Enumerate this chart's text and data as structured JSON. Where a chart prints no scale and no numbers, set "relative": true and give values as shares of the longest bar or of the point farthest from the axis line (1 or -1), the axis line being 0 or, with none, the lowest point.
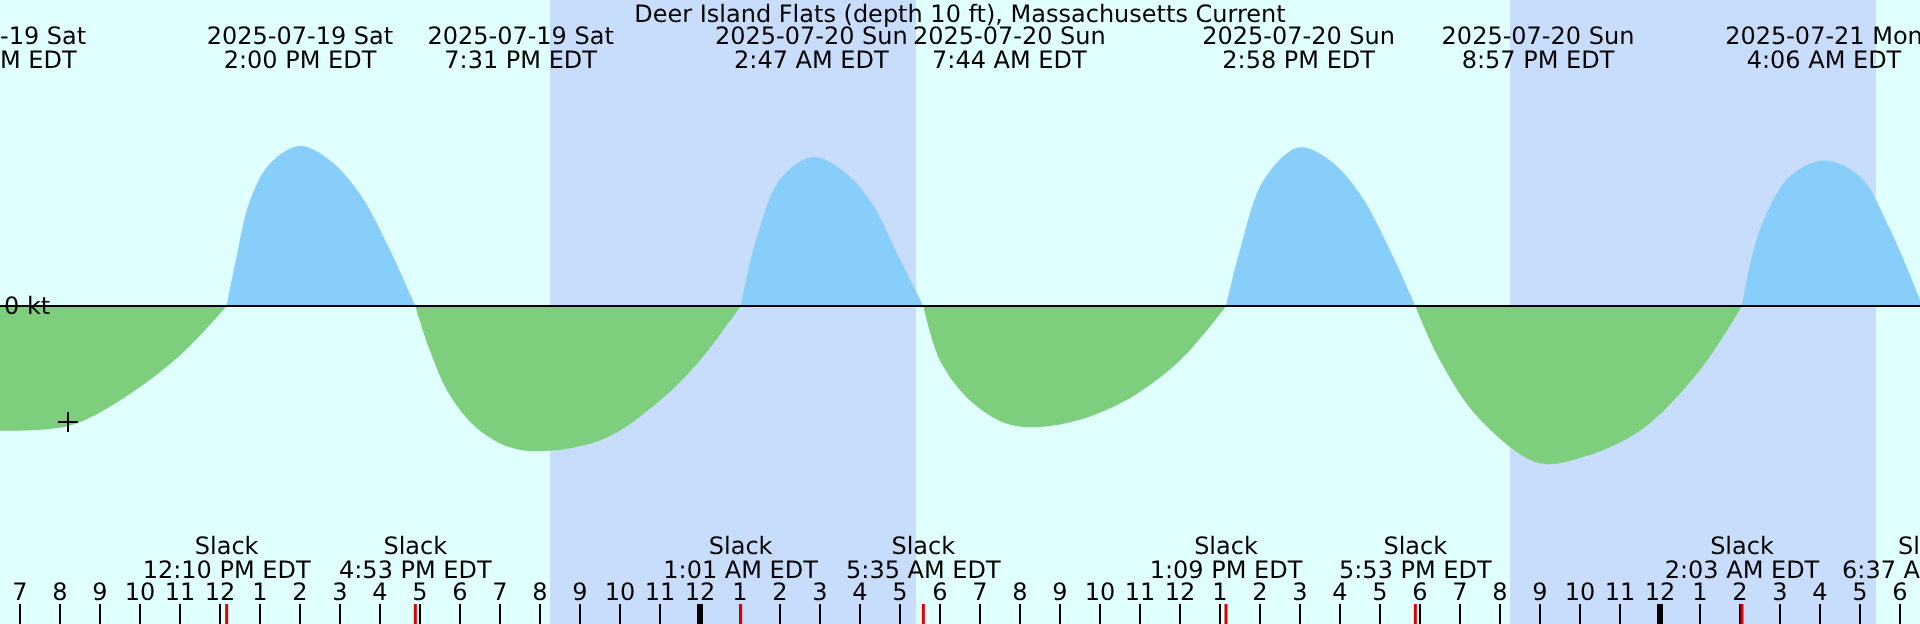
{
  "chart_data": {
    "type": "area",
    "title": "Deer Island Flats (depth 10 ft), Massachusetts Current",
    "relative": true,
    "xlim": [
      "2025-07-19T06:30",
      "2025-07-21T06:30"
    ],
    "xticks": [
      {
        "value": "2025-07-19T07:00",
        "label": "7"
      },
      {
        "value": "2025-07-19T08:00",
        "label": "8"
      },
      {
        "value": "2025-07-19T09:00",
        "label": "9"
      },
      {
        "value": "2025-07-19T10:00",
        "label": "10"
      },
      {
        "value": "2025-07-19T11:00",
        "label": "11"
      },
      {
        "value": "2025-07-19T12:00",
        "label": "12"
      },
      {
        "value": "2025-07-19T13:00",
        "label": "1"
      },
      {
        "value": "2025-07-19T14:00",
        "label": "2"
      },
      {
        "value": "2025-07-19T15:00",
        "label": "3"
      },
      {
        "value": "2025-07-19T16:00",
        "label": "4"
      },
      {
        "value": "2025-07-19T17:00",
        "label": "5"
      },
      {
        "value": "2025-07-19T18:00",
        "label": "6"
      },
      {
        "value": "2025-07-19T19:00",
        "label": "7"
      },
      {
        "value": "2025-07-19T20:00",
        "label": "8"
      },
      {
        "value": "2025-07-19T21:00",
        "label": "9"
      },
      {
        "value": "2025-07-19T22:00",
        "label": "10"
      },
      {
        "value": "2025-07-19T23:00",
        "label": "11"
      },
      {
        "value": "2025-07-20T00:00",
        "label": "12"
      },
      {
        "value": "2025-07-20T01:00",
        "label": "1"
      },
      {
        "value": "2025-07-20T02:00",
        "label": "2"
      },
      {
        "value": "2025-07-20T03:00",
        "label": "3"
      },
      {
        "value": "2025-07-20T04:00",
        "label": "4"
      },
      {
        "value": "2025-07-20T05:00",
        "label": "5"
      },
      {
        "value": "2025-07-20T06:00",
        "label": "6"
      },
      {
        "value": "2025-07-20T07:00",
        "label": "7"
      },
      {
        "value": "2025-07-20T08:00",
        "label": "8"
      },
      {
        "value": "2025-07-20T09:00",
        "label": "9"
      },
      {
        "value": "2025-07-20T10:00",
        "label": "10"
      },
      {
        "value": "2025-07-20T11:00",
        "label": "11"
      },
      {
        "value": "2025-07-20T12:00",
        "label": "12"
      },
      {
        "value": "2025-07-20T13:00",
        "label": "1"
      },
      {
        "value": "2025-07-20T14:00",
        "label": "2"
      },
      {
        "value": "2025-07-20T15:00",
        "label": "3"
      },
      {
        "value": "2025-07-20T16:00",
        "label": "4"
      },
      {
        "value": "2025-07-20T17:00",
        "label": "5"
      },
      {
        "value": "2025-07-20T18:00",
        "label": "6"
      },
      {
        "value": "2025-07-20T19:00",
        "label": "7"
      },
      {
        "value": "2025-07-20T20:00",
        "label": "8"
      },
      {
        "value": "2025-07-20T21:00",
        "label": "9"
      },
      {
        "value": "2025-07-20T22:00",
        "label": "10"
      },
      {
        "value": "2025-07-20T23:00",
        "label": "11"
      },
      {
        "value": "2025-07-21T00:00",
        "label": "12"
      },
      {
        "value": "2025-07-21T01:00",
        "label": "1"
      },
      {
        "value": "2025-07-21T02:00",
        "label": "2"
      },
      {
        "value": "2025-07-21T03:00",
        "label": "3"
      },
      {
        "value": "2025-07-21T04:00",
        "label": "4"
      },
      {
        "value": "2025-07-21T05:00",
        "label": "5"
      },
      {
        "value": "2025-07-21T06:00",
        "label": "6"
      }
    ],
    "bands": [
      {
        "axis": "x",
        "from": "2025-07-19T20:15",
        "to": "2025-07-20T05:24",
        "color": "#c8dcfc"
      },
      {
        "axis": "x",
        "from": "2025-07-20T20:15",
        "to": "2025-07-21T05:24",
        "color": "#c8dcfc"
      }
    ],
    "series": [
      {
        "color": "#87cefa",
        "x": [
          "2025-07-19T12:10",
          "2025-07-19T12:24",
          "2025-07-19T12:45",
          "2025-07-19T13:15",
          "2025-07-19T14:00",
          "2025-07-19T14:45",
          "2025-07-19T15:30",
          "2025-07-19T16:15",
          "2025-07-19T16:53",
          "2025-07-19T19:31",
          "2025-07-20T01:01",
          "2025-07-20T01:24",
          "2025-07-20T02:00",
          "2025-07-20T02:47",
          "2025-07-20T03:30",
          "2025-07-20T04:15",
          "2025-07-20T05:00",
          "2025-07-20T05:35",
          "2025-07-20T07:44",
          "2025-07-20T13:09",
          "2025-07-20T13:30",
          "2025-07-20T14:06",
          "2025-07-20T14:58",
          "2025-07-20T15:45",
          "2025-07-20T16:30",
          "2025-07-20T17:15",
          "2025-07-20T17:53",
          "2025-07-20T20:57",
          "2025-07-21T02:03",
          "2025-07-21T02:30",
          "2025-07-21T03:15",
          "2025-07-21T04:06",
          "2025-07-21T05:00",
          "2025-07-21T05:45",
          "2025-07-21T06:30"
        ],
        "values": [
          0,
          0.29,
          0.66,
          0.89,
          1,
          0.91,
          0.7,
          0.35,
          0,
          null,
          0,
          0.41,
          0.79,
          0.93,
          0.86,
          0.66,
          0.29,
          0,
          null,
          0,
          0.35,
          0.79,
          0.99,
          0.91,
          0.7,
          0.35,
          0,
          null,
          0,
          0.48,
          0.81,
          0.91,
          0.81,
          0.48,
          0.04
        ]
      },
      {
        "color": "#7dce7d",
        "x": [
          "2025-07-19T06:30",
          "2025-07-19T08:12",
          "2025-07-19T09:30",
          "2025-07-19T11:00",
          "2025-07-19T12:10",
          "2025-07-19T14:00",
          "2025-07-19T16:53",
          "2025-07-19T17:15",
          "2025-07-19T17:45",
          "2025-07-19T18:30",
          "2025-07-19T19:31",
          "2025-07-19T21:30",
          "2025-07-19T23:00",
          "2025-07-20T00:00",
          "2025-07-20T01:01",
          "2025-07-20T02:47",
          "2025-07-20T05:35",
          "2025-07-20T06:00",
          "2025-07-20T06:45",
          "2025-07-20T07:44",
          "2025-07-20T09:00",
          "2025-07-20T10:30",
          "2025-07-20T12:00",
          "2025-07-20T13:09",
          "2025-07-20T14:58",
          "2025-07-20T17:53",
          "2025-07-20T18:30",
          "2025-07-20T19:30",
          "2025-07-20T20:57",
          "2025-07-20T22:00",
          "2025-07-20T23:30",
          "2025-07-21T01:00",
          "2025-07-21T02:03"
        ],
        "values": [
          -0.78,
          -0.75,
          -0.59,
          -0.31,
          0,
          null,
          0,
          -0.28,
          -0.56,
          -0.78,
          -0.9,
          -0.84,
          -0.59,
          -0.34,
          0,
          null,
          0,
          -0.34,
          -0.59,
          -0.74,
          -0.74,
          -0.61,
          -0.34,
          0,
          null,
          0,
          -0.34,
          -0.71,
          -0.98,
          -0.95,
          -0.78,
          -0.4,
          0
        ]
      }
    ],
    "annotations": [
      "0 kt",
      "-19 Sat\nM EDT",
      "2025-07-19 Sat\n2:00 PM EDT",
      "2025-07-19 Sat\n7:31 PM EDT",
      "2025-07-20 Sun\n2:47 AM EDT",
      "2025-07-20 Sun\n7:44 AM EDT",
      "2025-07-20 Sun\n2:58 PM EDT",
      "2025-07-20 Sun\n8:57 PM EDT",
      "2025-07-21 Mon\n4:06 AM EDT",
      "Slack\n12:10 PM EDT",
      "Slack\n4:53 PM EDT",
      "Slack\n1:01 AM EDT",
      "Slack\n5:35 AM EDT",
      "Slack\n1:09 PM EDT",
      "Slack\n5:53 PM EDT",
      "Slack\n2:03 AM EDT",
      "Sl\n6:37 A"
    ]
  }
}
